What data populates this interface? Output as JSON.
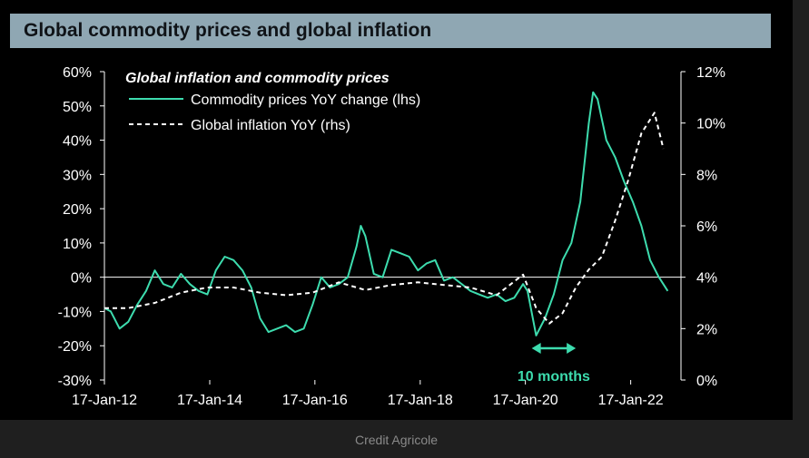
{
  "header": {
    "title": "Global commodity prices and global inflation"
  },
  "footer": {
    "source": "Credit Agricole"
  },
  "chart_data": {
    "type": "line",
    "legend": {
      "title": "Global inflation and commodity prices",
      "placement": "top-left"
    },
    "x_ticks": [
      "17-Jan-12",
      "17-Jan-14",
      "17-Jan-16",
      "17-Jan-18",
      "17-Jan-20",
      "17-Jan-22"
    ],
    "y_left": {
      "min": -0.3,
      "max": 0.6,
      "ticks": [
        {
          "value": 0.6,
          "label": "60%"
        },
        {
          "value": 0.5,
          "label": "50%"
        },
        {
          "value": 0.4,
          "label": "40%"
        },
        {
          "value": 0.3,
          "label": "30%"
        },
        {
          "value": 0.2,
          "label": "20%"
        },
        {
          "value": 0.1,
          "label": "10%"
        },
        {
          "value": 0.0,
          "label": "0%"
        },
        {
          "value": -0.1,
          "label": "-10%"
        },
        {
          "value": -0.2,
          "label": "-20%"
        },
        {
          "value": -0.3,
          "label": "-30%"
        }
      ]
    },
    "y_right": {
      "min": 0,
      "max": 12,
      "ticks": [
        {
          "value": 12,
          "label": "12%"
        },
        {
          "value": 10,
          "label": "10%"
        },
        {
          "value": 8,
          "label": "8%"
        },
        {
          "value": 6,
          "label": "6%"
        },
        {
          "value": 4,
          "label": "4%"
        },
        {
          "value": 2,
          "label": "2%"
        },
        {
          "value": 0,
          "label": "0%"
        }
      ]
    },
    "series": [
      {
        "name": "Commodity prices YoY change (lhs)",
        "axis": "left",
        "color": "#3ddcae",
        "style": "solid",
        "points": [
          [
            "2012-01-17",
            -0.09
          ],
          [
            "2012-03-01",
            -0.1
          ],
          [
            "2012-05-01",
            -0.15
          ],
          [
            "2012-07-01",
            -0.13
          ],
          [
            "2012-09-01",
            -0.08
          ],
          [
            "2012-11-01",
            -0.04
          ],
          [
            "2013-01-01",
            0.02
          ],
          [
            "2013-03-01",
            -0.02
          ],
          [
            "2013-05-01",
            -0.03
          ],
          [
            "2013-07-01",
            0.01
          ],
          [
            "2013-09-01",
            -0.02
          ],
          [
            "2013-11-01",
            -0.04
          ],
          [
            "2014-01-01",
            -0.05
          ],
          [
            "2014-03-01",
            0.02
          ],
          [
            "2014-05-01",
            0.06
          ],
          [
            "2014-07-01",
            0.05
          ],
          [
            "2014-09-01",
            0.02
          ],
          [
            "2014-11-01",
            -0.03
          ],
          [
            "2015-01-01",
            -0.12
          ],
          [
            "2015-03-01",
            -0.16
          ],
          [
            "2015-05-01",
            -0.15
          ],
          [
            "2015-07-01",
            -0.14
          ],
          [
            "2015-09-01",
            -0.16
          ],
          [
            "2015-11-01",
            -0.15
          ],
          [
            "2016-01-01",
            -0.08
          ],
          [
            "2016-03-01",
            0.0
          ],
          [
            "2016-05-01",
            -0.03
          ],
          [
            "2016-07-01",
            -0.02
          ],
          [
            "2016-09-01",
            0.0
          ],
          [
            "2016-11-01",
            0.09
          ],
          [
            "2016-12-01",
            0.15
          ],
          [
            "2017-01-01",
            0.12
          ],
          [
            "2017-03-01",
            0.01
          ],
          [
            "2017-05-01",
            0.0
          ],
          [
            "2017-07-01",
            0.08
          ],
          [
            "2017-09-01",
            0.07
          ],
          [
            "2017-11-01",
            0.06
          ],
          [
            "2018-01-01",
            0.02
          ],
          [
            "2018-03-01",
            0.04
          ],
          [
            "2018-05-01",
            0.05
          ],
          [
            "2018-07-01",
            -0.01
          ],
          [
            "2018-09-01",
            0.0
          ],
          [
            "2018-11-01",
            -0.02
          ],
          [
            "2019-01-01",
            -0.04
          ],
          [
            "2019-03-01",
            -0.05
          ],
          [
            "2019-05-01",
            -0.06
          ],
          [
            "2019-07-01",
            -0.05
          ],
          [
            "2019-09-01",
            -0.07
          ],
          [
            "2019-11-01",
            -0.06
          ],
          [
            "2020-01-01",
            -0.02
          ],
          [
            "2020-02-01",
            -0.04
          ],
          [
            "2020-04-01",
            -0.17
          ],
          [
            "2020-06-01",
            -0.12
          ],
          [
            "2020-08-01",
            -0.05
          ],
          [
            "2020-10-01",
            0.05
          ],
          [
            "2020-12-01",
            0.1
          ],
          [
            "2021-02-01",
            0.22
          ],
          [
            "2021-04-01",
            0.45
          ],
          [
            "2021-05-01",
            0.54
          ],
          [
            "2021-06-01",
            0.52
          ],
          [
            "2021-08-01",
            0.4
          ],
          [
            "2021-10-01",
            0.35
          ],
          [
            "2021-12-01",
            0.28
          ],
          [
            "2022-02-01",
            0.22
          ],
          [
            "2022-04-01",
            0.15
          ],
          [
            "2022-06-01",
            0.05
          ],
          [
            "2022-08-01",
            0.0
          ],
          [
            "2022-10-01",
            -0.04
          ]
        ]
      },
      {
        "name": "Global inflation YoY (rhs)",
        "axis": "right",
        "color": "#ffffff",
        "style": "dashed",
        "points": [
          [
            "2012-01-17",
            2.8
          ],
          [
            "2012-07-01",
            2.8
          ],
          [
            "2013-01-01",
            3.0
          ],
          [
            "2013-07-01",
            3.4
          ],
          [
            "2014-01-01",
            3.6
          ],
          [
            "2014-07-01",
            3.6
          ],
          [
            "2015-01-01",
            3.4
          ],
          [
            "2015-07-01",
            3.3
          ],
          [
            "2016-01-01",
            3.4
          ],
          [
            "2016-07-01",
            3.8
          ],
          [
            "2017-01-01",
            3.5
          ],
          [
            "2017-07-01",
            3.7
          ],
          [
            "2018-01-01",
            3.8
          ],
          [
            "2018-07-01",
            3.7
          ],
          [
            "2019-01-01",
            3.6
          ],
          [
            "2019-07-01",
            3.3
          ],
          [
            "2020-01-01",
            4.1
          ],
          [
            "2020-04-01",
            2.8
          ],
          [
            "2020-07-01",
            2.2
          ],
          [
            "2020-10-01",
            2.6
          ],
          [
            "2021-01-01",
            3.6
          ],
          [
            "2021-04-01",
            4.3
          ],
          [
            "2021-07-01",
            4.8
          ],
          [
            "2021-10-01",
            6.2
          ],
          [
            "2022-01-01",
            7.8
          ],
          [
            "2022-04-01",
            9.6
          ],
          [
            "2022-07-01",
            10.4
          ],
          [
            "2022-09-01",
            9.0
          ]
        ]
      }
    ],
    "annotation": {
      "text": "10 months",
      "from": "2020-03-01",
      "to": "2021-01-01",
      "color": "#3ddcae"
    },
    "grid": false
  }
}
